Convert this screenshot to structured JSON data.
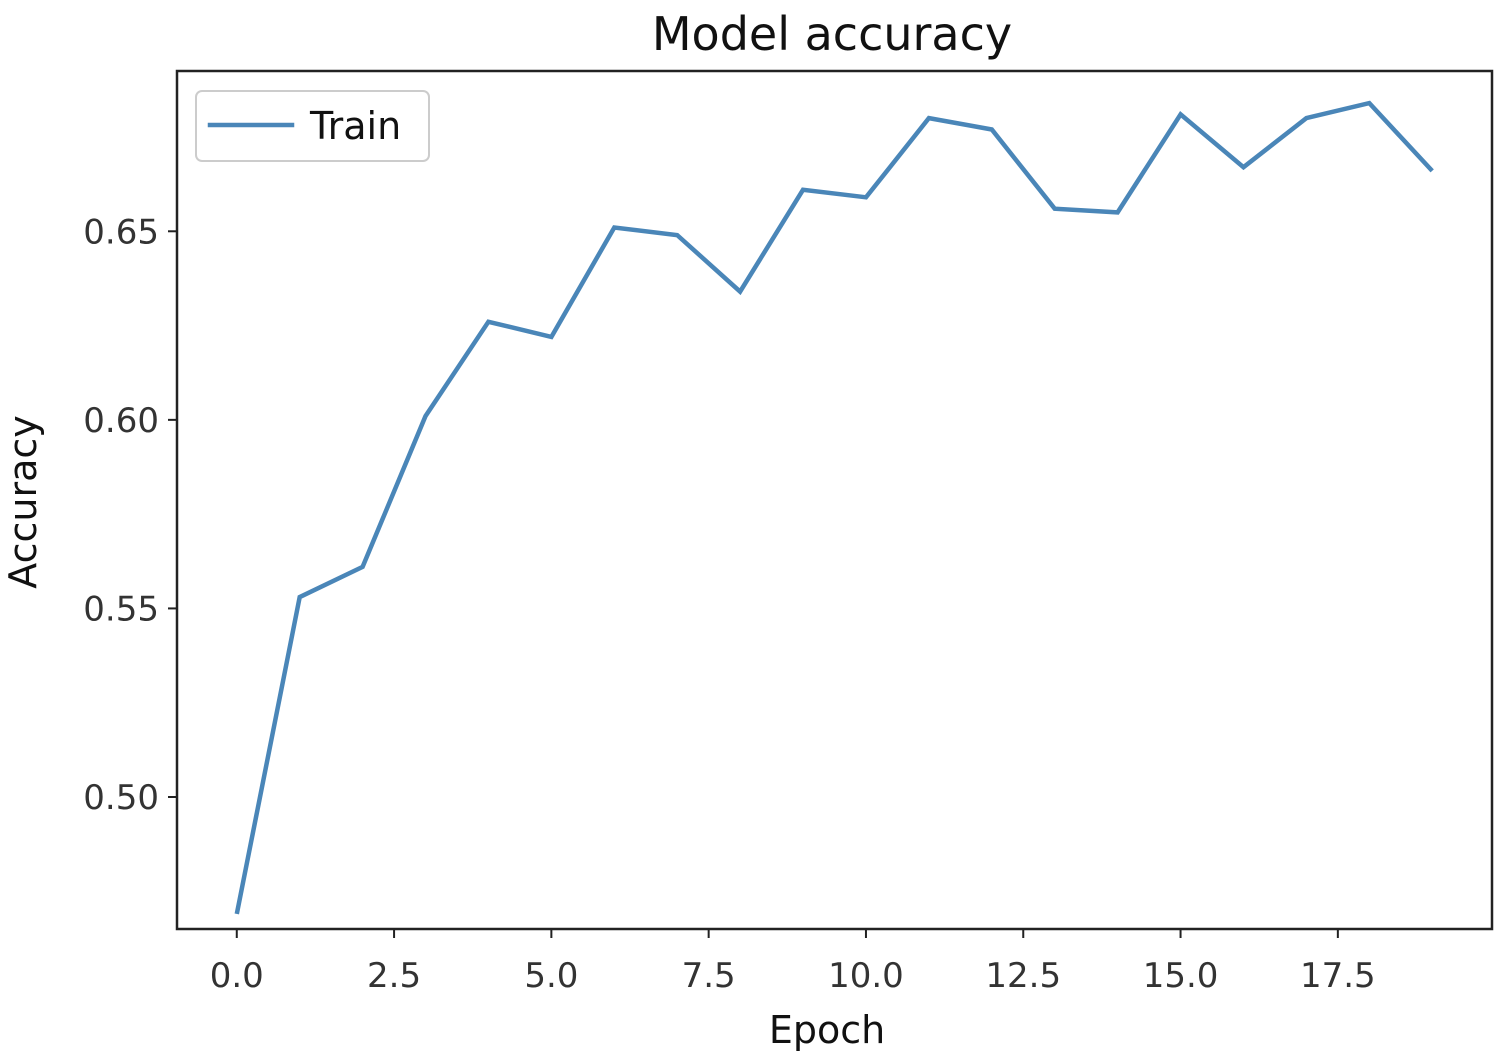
{
  "chart_data": {
    "type": "line",
    "title": "Model accuracy",
    "xlabel": "Epoch",
    "ylabel": "Accuracy",
    "xlim": [
      -0.95,
      19.95
    ],
    "ylim": [
      0.465,
      0.6925
    ],
    "xticks": [
      0.0,
      2.5,
      5.0,
      7.5,
      10.0,
      12.5,
      15.0,
      17.5
    ],
    "xtick_labels": [
      "0.0",
      "2.5",
      "5.0",
      "7.5",
      "10.0",
      "12.5",
      "15.0",
      "17.5"
    ],
    "yticks": [
      0.5,
      0.55,
      0.6,
      0.65
    ],
    "ytick_labels": [
      "0.50",
      "0.55",
      "0.60",
      "0.65"
    ],
    "grid": false,
    "legend_position": "upper-left",
    "series": [
      {
        "name": "Train",
        "color": "#4a86b8",
        "x": [
          0,
          1,
          2,
          3,
          4,
          5,
          6,
          7,
          8,
          9,
          10,
          11,
          12,
          13,
          14,
          15,
          16,
          17,
          18,
          19
        ],
        "values": [
          0.469,
          0.553,
          0.561,
          0.601,
          0.626,
          0.622,
          0.651,
          0.649,
          0.634,
          0.661,
          0.659,
          0.68,
          0.677,
          0.656,
          0.655,
          0.681,
          0.667,
          0.68,
          0.684,
          0.666
        ]
      }
    ]
  }
}
